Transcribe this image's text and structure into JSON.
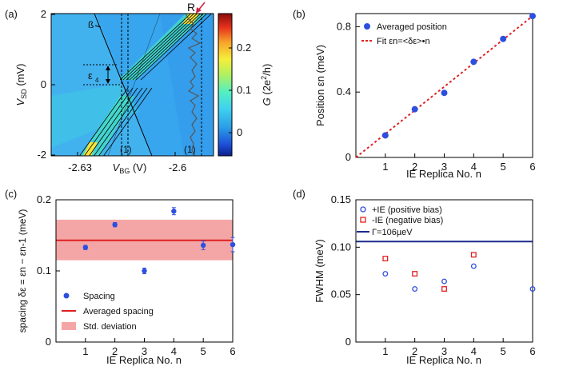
{
  "chart_data": [
    {
      "panel": "(a)",
      "type": "heatmap",
      "xlabel": "V_BG (V)",
      "ylabel": "V_SD (mV)",
      "xticks": [
        "-2.63",
        "-2.6"
      ],
      "yticks": [
        "2",
        "0",
        "-2"
      ],
      "ylim": [
        -2,
        2
      ],
      "colorbar": {
        "label": "G (2e²/h)",
        "ticks": [
          "0",
          "0.1",
          "0.2"
        ],
        "range": [
          -0.03,
          0.27
        ]
      },
      "annotations": [
        "ß",
        "R",
        "ε",
        "4",
        "(1)",
        "(1)"
      ],
      "colors": {
        "background": "#38a6ee",
        "highlight": "#46e2c2",
        "peak": "#f5e43a",
        "line": "#000000",
        "trace": "#555555",
        "arrow": "#cc2244"
      }
    },
    {
      "panel": "(b)",
      "type": "scatter",
      "xlabel": "IE Replica No. n",
      "ylabel": "Position εn (meV)",
      "xlim": [
        0,
        6
      ],
      "ylim": [
        0,
        0.88
      ],
      "xticks": [
        1,
        2,
        3,
        4,
        5,
        6
      ],
      "yticks": [
        "0",
        "0.4",
        "0.8"
      ],
      "series": [
        {
          "name": "Averaged position",
          "x": [
            1,
            2,
            3,
            4,
            5,
            6
          ],
          "y": [
            0.135,
            0.295,
            0.395,
            0.585,
            0.725,
            0.865
          ],
          "color": "#2d4fe0"
        },
        {
          "name": "Fit εn=<δε>•n",
          "type": "line",
          "x": [
            0,
            6
          ],
          "y": [
            0,
            0.865
          ],
          "color": "#e02020"
        }
      ],
      "legend": "top-left"
    },
    {
      "panel": "(c)",
      "type": "scatter",
      "xlabel": "IE Replica No. n",
      "ylabel": "spacing δε = εn − εn-1 (meV)",
      "xlim": [
        0,
        6
      ],
      "ylim": [
        0,
        0.2
      ],
      "xticks": [
        1,
        2,
        3,
        4,
        5,
        6
      ],
      "yticks": [
        "0",
        "0.1",
        "0.2"
      ],
      "series": [
        {
          "name": "Spacing",
          "x": [
            1,
            2,
            3,
            4,
            5,
            6
          ],
          "y": [
            0.133,
            0.165,
            0.1,
            0.184,
            0.136,
            0.137
          ],
          "err": [
            0.003,
            0.003,
            0.004,
            0.005,
            0.006,
            0.01
          ],
          "color": "#2d4fe0"
        },
        {
          "name": "Averaged spacing",
          "type": "hline",
          "y": 0.143,
          "color": "#e02020"
        },
        {
          "name": "Std. deviation",
          "type": "band",
          "y": [
            0.115,
            0.172
          ],
          "color": "#f4a6a6"
        }
      ],
      "legend": "bottom-left"
    },
    {
      "panel": "(d)",
      "type": "scatter",
      "xlabel": "IE Replica No. n",
      "ylabel": "FWHM (meV)",
      "xlim": [
        0,
        6
      ],
      "ylim": [
        0,
        0.15
      ],
      "xticks": [
        1,
        2,
        3,
        4,
        5,
        6
      ],
      "yticks": [
        "0",
        "0.05",
        "0.10",
        "0.15"
      ],
      "series": [
        {
          "name": "+IE (positive bias)",
          "marker": "circle-open",
          "x": [
            1,
            2,
            3,
            4,
            6
          ],
          "y": [
            0.072,
            0.056,
            0.064,
            0.08,
            0.056
          ],
          "color": "#2d4fe0"
        },
        {
          "name": "-IE (negative bias)",
          "marker": "square-open",
          "x": [
            1,
            2,
            3,
            4
          ],
          "y": [
            0.088,
            0.072,
            0.056,
            0.092
          ],
          "color": "#e02020"
        },
        {
          "name": "Γ=106µeV",
          "type": "hline",
          "y": 0.106,
          "color": "#1a2a8c"
        }
      ],
      "legend": "top-left"
    }
  ]
}
